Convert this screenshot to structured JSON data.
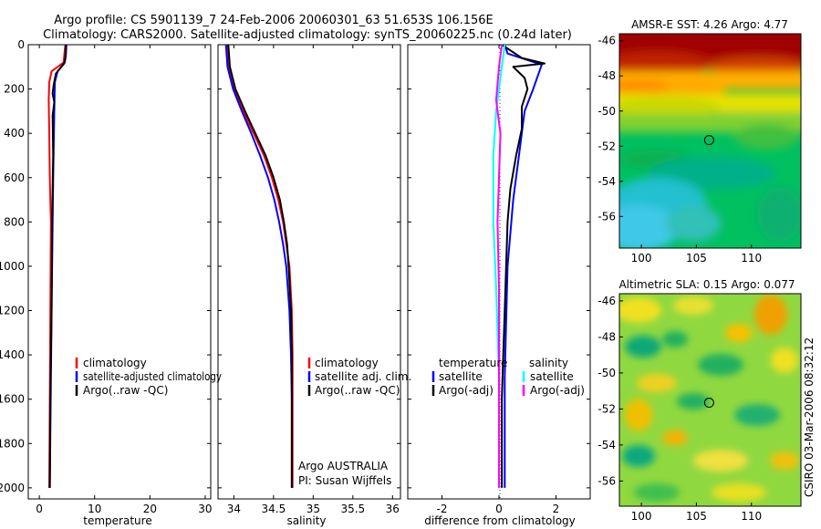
{
  "figure": {
    "title_line1": "Argo profile: CS 5901139_7 24-Feb-2006 20060301_63 51.653S 106.156E",
    "title_line2": "Climatology: CARS2000. Satellite-adjusted climatology: synTS_20060225.nc (0.24d later)",
    "footer": "CSIRO 03-Mar-2006 08:32:12"
  },
  "colors": {
    "climatology": "#ff0000",
    "satellite": "#0000ff",
    "argo": "#000000",
    "sat_sal": "#00ffff",
    "argo_sal": "#ff00ff"
  },
  "chart_data": [
    {
      "id": "temperature",
      "type": "line",
      "xlabel": "temperature",
      "ylabel": "",
      "xlim": [
        -2,
        31
      ],
      "ylim": [
        2050,
        0
      ],
      "xticks": [
        0,
        10,
        20,
        30
      ],
      "yticks": [
        0,
        200,
        400,
        600,
        800,
        1000,
        1200,
        1400,
        1600,
        1800,
        2000
      ],
      "legend": [
        "climatology",
        "satellite-adjusted climatology",
        "Argo(..raw -QC)"
      ],
      "series": [
        {
          "name": "climatology",
          "color": "climatology",
          "points": [
            [
              4.7,
              0
            ],
            [
              4.5,
              50
            ],
            [
              4.4,
              80
            ],
            [
              2.2,
              120
            ],
            [
              1.8,
              170
            ],
            [
              1.7,
              250
            ],
            [
              1.8,
              400
            ],
            [
              1.9,
              600
            ],
            [
              2.1,
              800
            ],
            [
              2.0,
              1200
            ],
            [
              1.9,
              1600
            ],
            [
              1.8,
              2000
            ]
          ]
        },
        {
          "name": "satellite-adjusted climatology",
          "color": "satellite",
          "points": [
            [
              4.9,
              0
            ],
            [
              4.8,
              50
            ],
            [
              4.6,
              80
            ],
            [
              3.3,
              120
            ],
            [
              2.8,
              170
            ],
            [
              2.7,
              300
            ],
            [
              2.5,
              600
            ],
            [
              2.3,
              1000
            ],
            [
              2.1,
              1500
            ],
            [
              1.9,
              2000
            ]
          ]
        },
        {
          "name": "Argo(..raw -QC)",
          "color": "argo",
          "points": [
            [
              4.8,
              0
            ],
            [
              4.7,
              60
            ],
            [
              4.5,
              85
            ],
            [
              3.0,
              130
            ],
            [
              2.6,
              180
            ],
            [
              2.4,
              220
            ],
            [
              2.7,
              260
            ],
            [
              2.4,
              320
            ],
            [
              2.5,
              500
            ],
            [
              2.3,
              800
            ],
            [
              2.2,
              1200
            ],
            [
              2.0,
              1600
            ],
            [
              1.9,
              2000
            ]
          ]
        }
      ]
    },
    {
      "id": "salinity",
      "type": "line",
      "xlabel": "salinity",
      "xlim": [
        33.8,
        36.1
      ],
      "ylim": [
        2050,
        0
      ],
      "xticks": [
        34,
        34.5,
        35,
        35.5,
        36
      ],
      "tick_labels": [
        "34",
        "34.5",
        "35",
        "35.5",
        "36"
      ],
      "legend": [
        "climatology",
        "satellite adj. clim.",
        "Argo(..raw -QC)"
      ],
      "annotations": [
        "Argo AUSTRALIA",
        "PI: Susan Wijffels"
      ],
      "series": [
        {
          "name": "climatology",
          "color": "climatology",
          "points": [
            [
              33.91,
              0
            ],
            [
              33.93,
              100
            ],
            [
              34.0,
              200
            ],
            [
              34.12,
              300
            ],
            [
              34.25,
              400
            ],
            [
              34.38,
              500
            ],
            [
              34.48,
              600
            ],
            [
              34.56,
              700
            ],
            [
              34.62,
              800
            ],
            [
              34.66,
              900
            ],
            [
              34.7,
              1000
            ],
            [
              34.73,
              1200
            ],
            [
              34.74,
              1400
            ],
            [
              34.74,
              1600
            ],
            [
              34.74,
              2000
            ]
          ]
        },
        {
          "name": "satellite adj. clim.",
          "color": "satellite",
          "points": [
            [
              33.9,
              0
            ],
            [
              33.92,
              100
            ],
            [
              33.99,
              200
            ],
            [
              34.1,
              300
            ],
            [
              34.22,
              400
            ],
            [
              34.33,
              500
            ],
            [
              34.43,
              600
            ],
            [
              34.51,
              700
            ],
            [
              34.57,
              800
            ],
            [
              34.62,
              900
            ],
            [
              34.66,
              1000
            ],
            [
              34.7,
              1200
            ],
            [
              34.72,
              1400
            ],
            [
              34.73,
              1600
            ],
            [
              34.73,
              2000
            ]
          ]
        },
        {
          "name": "Argo(..raw -QC)",
          "color": "argo",
          "points": [
            [
              33.93,
              0
            ],
            [
              33.95,
              100
            ],
            [
              34.02,
              200
            ],
            [
              34.14,
              300
            ],
            [
              34.27,
              400
            ],
            [
              34.4,
              500
            ],
            [
              34.5,
              600
            ],
            [
              34.58,
              700
            ],
            [
              34.63,
              800
            ],
            [
              34.67,
              900
            ],
            [
              34.69,
              1000
            ],
            [
              34.72,
              1200
            ],
            [
              34.73,
              1400
            ],
            [
              34.73,
              1600
            ],
            [
              34.73,
              2000
            ]
          ]
        }
      ]
    },
    {
      "id": "difference",
      "type": "line",
      "xlabel": "difference from climatology",
      "xlim": [
        -3.2,
        3.2
      ],
      "ylim": [
        2050,
        0
      ],
      "xticks": [
        -2,
        0,
        2
      ],
      "legend_left_title": "temperature",
      "legend_right_title": "salinity",
      "legend_left": [
        "satellite",
        "Argo(-adj)"
      ],
      "legend_right": [
        "satellite",
        "Argo(-adj)"
      ],
      "series": [
        {
          "name": "temperature satellite",
          "color": "satellite",
          "points": [
            [
              0.2,
              0
            ],
            [
              0.3,
              40
            ],
            [
              1.5,
              90
            ],
            [
              1.2,
              200
            ],
            [
              0.9,
              300
            ],
            [
              0.7,
              500
            ],
            [
              0.5,
              700
            ],
            [
              0.3,
              1000
            ],
            [
              0.2,
              1500
            ],
            [
              0.2,
              2000
            ]
          ]
        },
        {
          "name": "temperature Argo(-adj)",
          "color": "argo",
          "points": [
            [
              0.1,
              0
            ],
            [
              0.8,
              60
            ],
            [
              1.6,
              85
            ],
            [
              0.5,
              100
            ],
            [
              0.9,
              150
            ],
            [
              1.0,
              200
            ],
            [
              0.8,
              280
            ],
            [
              0.8,
              380
            ],
            [
              0.6,
              500
            ],
            [
              0.4,
              650
            ],
            [
              0.3,
              800
            ],
            [
              0.2,
              1200
            ],
            [
              0.1,
              1600
            ],
            [
              0.1,
              2000
            ]
          ]
        },
        {
          "name": "salinity satellite",
          "color": "sat_sal",
          "points": [
            [
              0.2,
              0
            ],
            [
              0.1,
              100
            ],
            [
              -0.1,
              300
            ],
            [
              -0.2,
              500
            ],
            [
              -0.2,
              800
            ],
            [
              -0.1,
              1100
            ],
            [
              0.0,
              1500
            ],
            [
              0.0,
              2000
            ]
          ]
        },
        {
          "name": "salinity Argo(-adj)",
          "color": "argo_sal",
          "points": [
            [
              0.1,
              0
            ],
            [
              0.0,
              100
            ],
            [
              -0.1,
              250
            ],
            [
              0.05,
              400
            ],
            [
              0.0,
              600
            ],
            [
              -0.05,
              800
            ],
            [
              0.0,
              1100
            ],
            [
              0.0,
              1500
            ],
            [
              0.0,
              2000
            ]
          ]
        }
      ]
    },
    {
      "id": "amsr_map",
      "type": "heatmap",
      "title": "AMSR-E SST: 4.26 Argo: 4.77",
      "xlim": [
        98,
        114.5
      ],
      "ylim": [
        -57.8,
        -45.6
      ],
      "xticks": [
        100,
        105,
        110
      ],
      "yticks": [
        -46,
        -48,
        -50,
        -52,
        -54,
        -56
      ],
      "marker": [
        106.156,
        -51.653
      ]
    },
    {
      "id": "sla_map",
      "type": "heatmap",
      "title": "Altimetric SLA: 0.15 Argo: 0.077",
      "xlim": [
        98,
        114.5
      ],
      "ylim": [
        -57.4,
        -45.6
      ],
      "xticks": [
        100,
        105,
        110
      ],
      "yticks": [
        -46,
        -48,
        -50,
        -52,
        -54,
        -56
      ],
      "marker": [
        106.156,
        -51.653
      ]
    }
  ]
}
